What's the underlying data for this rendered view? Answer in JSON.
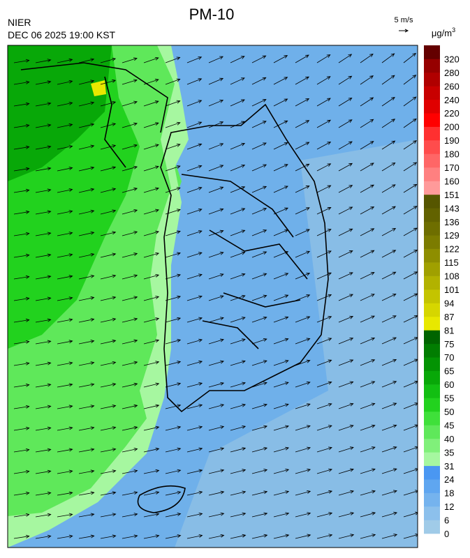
{
  "header": {
    "title": "PM-10",
    "agency": "NIER",
    "datetime": "DEC 06 2025 19:00 KST"
  },
  "wind_legend": {
    "label": "5 m/s"
  },
  "colorbar": {
    "unit": "μg/m",
    "unit_exponent": "3",
    "ticks": [
      0,
      6,
      12,
      18,
      24,
      31,
      35,
      40,
      45,
      50,
      55,
      60,
      65,
      70,
      75,
      81,
      87,
      94,
      101,
      108,
      115,
      122,
      129,
      136,
      143,
      151,
      160,
      170,
      180,
      190,
      200,
      220,
      240,
      260,
      280,
      320
    ],
    "colors": [
      "#a0cbe8",
      "#8cc0ec",
      "#75b3ee",
      "#5fa6f0",
      "#4a97f2",
      "#a6f7a0",
      "#80f07a",
      "#5fe85a",
      "#3fe03a",
      "#22d21e",
      "#12bf12",
      "#08a808",
      "#039303",
      "#017d01",
      "#006400",
      "#e8e800",
      "#d6d600",
      "#c4c400",
      "#b2b200",
      "#a0a000",
      "#8e8e00",
      "#7c7c00",
      "#6e6e00",
      "#626200",
      "#565600",
      "#ff9a9a",
      "#ff8080",
      "#ff6666",
      "#ff4c4c",
      "#ff3030",
      "#ff0000",
      "#e00000",
      "#c80000",
      "#b00000",
      "#960000",
      "#640000"
    ]
  }
}
